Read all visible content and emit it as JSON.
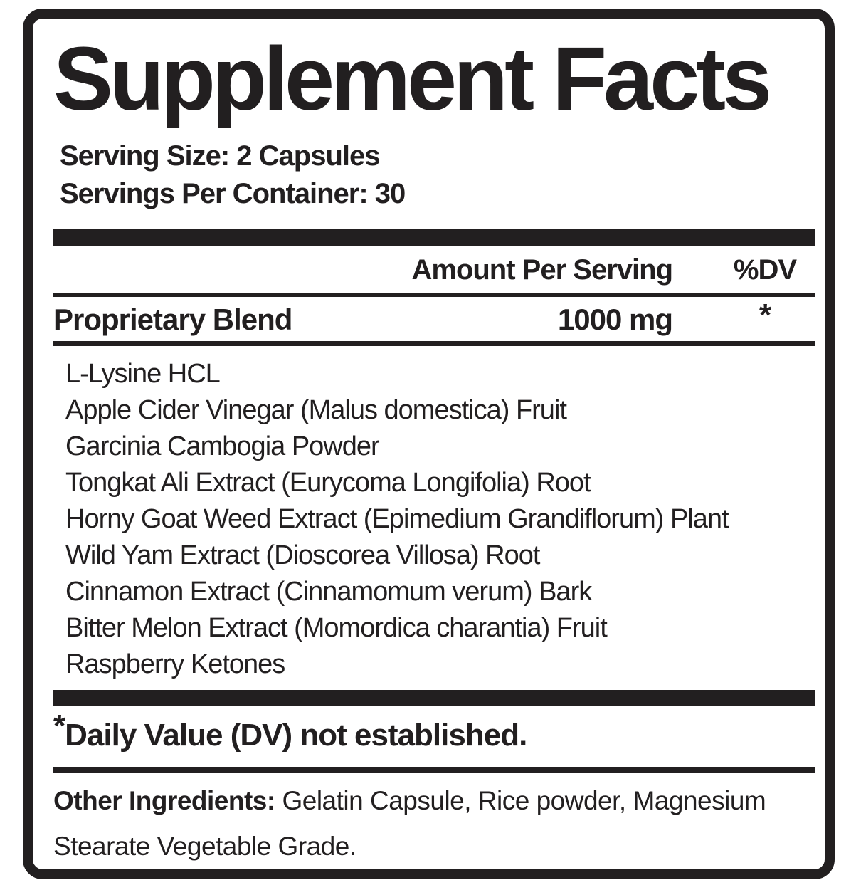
{
  "label": {
    "title": "Supplement Facts",
    "serving_size": "Serving Size: 2 Capsules",
    "servings_per_container": "Servings Per Container: 30",
    "columns": {
      "amount_header": "Amount Per Serving",
      "dv_header": "%DV"
    },
    "blend": {
      "name": "Proprietary Blend",
      "amount": "1000 mg",
      "dv": "*"
    },
    "ingredients": [
      "L-Lysine HCL",
      "Apple Cider Vinegar (Malus domestica) Fruit",
      "Garcinia Cambogia Powder",
      "Tongkat Ali Extract (Eurycoma Longifolia) Root",
      "Horny Goat Weed Extract (Epimedium Grandiflorum) Plant",
      "Wild Yam Extract (Dioscorea Villosa) Root",
      "Cinnamon Extract (Cinnamomum verum) Bark",
      "Bitter Melon Extract (Momordica charantia) Fruit",
      "Raspberry Ketones"
    ],
    "footnote": {
      "asterisk": "*",
      "text": "Daily Value (DV) not established."
    },
    "other_ingredients": {
      "label": "Other Ingredients: ",
      "text": "Gelatin Capsule, Rice powder, Magnesium Stearate Vegetable Grade."
    },
    "colors": {
      "ink": "#221f20",
      "background": "#ffffff"
    }
  }
}
